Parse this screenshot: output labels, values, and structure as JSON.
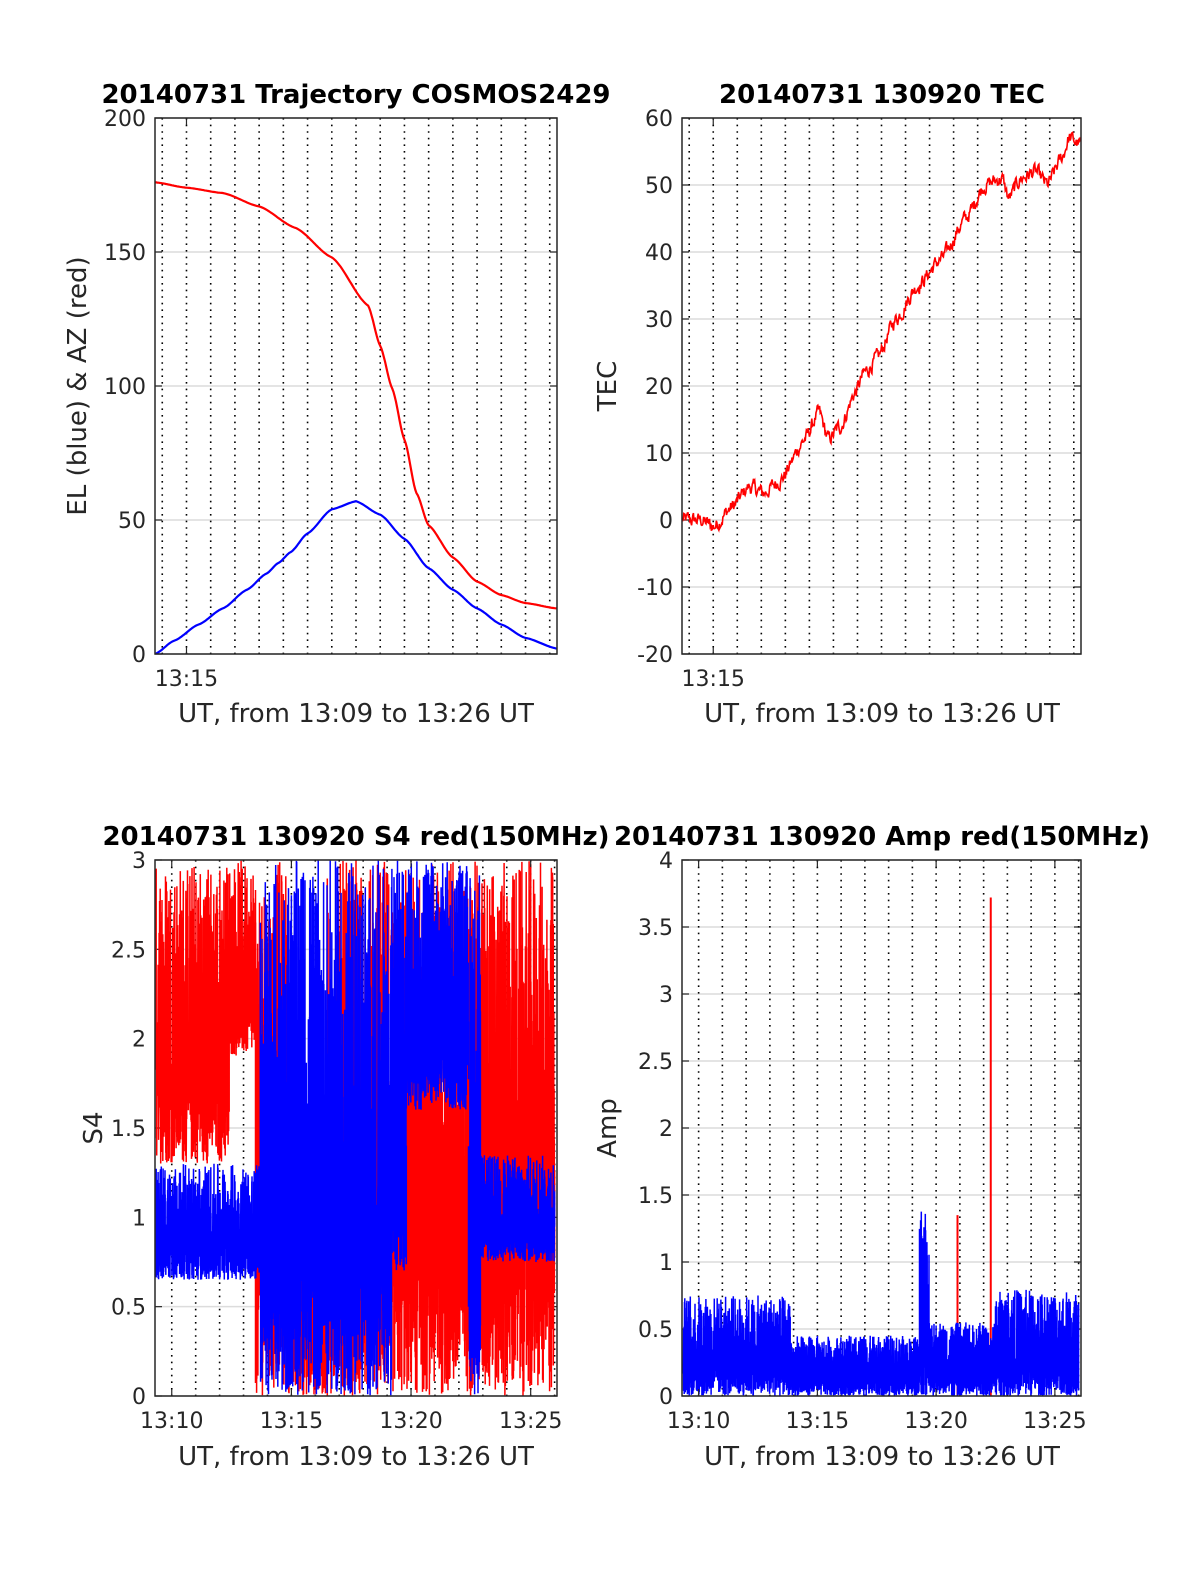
{
  "chart_data": [
    {
      "type": "line",
      "title": "20140731 Trajectory COSMOS2429",
      "xlabel": "UT, from 13:09 to 13:26 UT",
      "ylabel": "EL (blue) & AZ (red)",
      "xlim": [
        13.7,
        30.3
      ],
      "ylim": [
        0,
        200
      ],
      "xticks": [
        {
          "v": 15,
          "label": "13:15"
        }
      ],
      "yticks": [
        0,
        50,
        100,
        150,
        200
      ],
      "grid": true,
      "grid_minutes": [
        14,
        15,
        16,
        17,
        18,
        19,
        20,
        21,
        22,
        23,
        24,
        25,
        26,
        27,
        28,
        29,
        30
      ],
      "series": [
        {
          "color": "#0000ff",
          "kind": "smooth",
          "x": [
            13.7,
            14.5,
            15.5,
            16.5,
            17.5,
            18.3,
            18.8,
            19.3,
            20.0,
            21.0,
            22.0,
            23.0,
            24.0,
            25.0,
            26.0,
            27.0,
            28.0,
            29.0,
            30.3
          ],
          "y": [
            0,
            5,
            11,
            17,
            24,
            30,
            34,
            38,
            45,
            54,
            57,
            52,
            43,
            32,
            24,
            17,
            11,
            6,
            2
          ]
        },
        {
          "color": "#ff0000",
          "kind": "smooth",
          "x": [
            13.7,
            15.0,
            16.5,
            18.0,
            19.5,
            21.0,
            22.5,
            23.0,
            23.5,
            24.0,
            24.5,
            25.0,
            26.0,
            27.0,
            28.0,
            29.0,
            30.3
          ],
          "y": [
            176,
            174,
            172,
            167,
            159,
            148,
            130,
            115,
            99,
            80,
            60,
            48,
            36,
            27,
            22,
            19,
            17
          ]
        }
      ]
    },
    {
      "type": "line",
      "title": "20140731 130920 TEC",
      "xlabel": "UT, from 13:09 to 13:26 UT",
      "ylabel": "TEC",
      "xlim": [
        13.7,
        30.3
      ],
      "ylim": [
        -20,
        60
      ],
      "xticks": [
        {
          "v": 15,
          "label": "13:15"
        }
      ],
      "yticks": [
        -20,
        -10,
        0,
        10,
        20,
        30,
        40,
        50,
        60
      ],
      "grid": true,
      "grid_minutes": [
        14,
        15,
        16,
        17,
        18,
        19,
        20,
        21,
        22,
        23,
        24,
        25,
        26,
        27,
        28,
        29,
        30
      ],
      "series": [
        {
          "color": "#ff0000",
          "kind": "noisy",
          "noise": 0.9,
          "step": 0.05,
          "x": [
            13.7,
            14.5,
            15.0,
            15.8,
            16.5,
            17.1,
            17.8,
            18.8,
            19.4,
            19.8,
            20.3,
            20.9,
            21.3,
            21.8,
            22.6,
            23.5,
            24.5,
            25.5,
            26.3,
            27.0,
            27.3,
            27.8,
            28.4,
            28.9,
            29.5,
            29.8,
            30.3
          ],
          "y": [
            0,
            0,
            -1,
            2,
            5,
            4,
            6,
            12,
            16,
            12,
            14,
            19,
            22,
            24,
            30,
            35,
            39,
            45,
            50,
            51,
            48,
            51,
            52,
            50,
            54,
            57,
            56
          ]
        }
      ]
    },
    {
      "type": "line",
      "title": "20140731 130920 S4 red(150MHz)",
      "xlabel": "UT, from 13:09 to 13:26 UT",
      "ylabel": "S4",
      "xlim": [
        9.3,
        26.1
      ],
      "ylim": [
        0,
        3
      ],
      "xticks": [
        {
          "v": 10,
          "label": "13:10"
        },
        {
          "v": 15,
          "label": "13:15"
        },
        {
          "v": 20,
          "label": "13:20"
        },
        {
          "v": 25,
          "label": "13:25"
        }
      ],
      "yticks": [
        0,
        0.5,
        1,
        1.5,
        2,
        2.5,
        3
      ],
      "grid": true,
      "grid_minutes": [
        10,
        11,
        12,
        13,
        14,
        15,
        16,
        17,
        18,
        19,
        20,
        21,
        22,
        23,
        24,
        25,
        26
      ],
      "series": [
        {
          "color": "#ff0000",
          "kind": "bands",
          "segments": [
            {
              "from": 9.35,
              "to": 12.4,
              "lo": 1.3,
              "hi": 3.0
            },
            {
              "from": 12.4,
              "to": 13.5,
              "lo": 1.9,
              "hi": 3.0
            },
            {
              "from": 13.5,
              "to": 14.8,
              "lo": 0.0,
              "hi": 3.0
            },
            {
              "from": 14.8,
              "to": 16.5,
              "lo": 0.0,
              "hi": 1.5
            },
            {
              "from": 16.5,
              "to": 19.8,
              "lo": 0.0,
              "hi": 3.0
            },
            {
              "from": 19.8,
              "to": 26.0,
              "lo": 0.0,
              "hi": 3.0
            }
          ]
        },
        {
          "color": "#0000ff",
          "kind": "bands",
          "segments": [
            {
              "from": 9.35,
              "to": 13.7,
              "lo": 0.65,
              "hi": 1.3
            },
            {
              "from": 13.7,
              "to": 16.8,
              "lo": 0.0,
              "hi": 3.0
            },
            {
              "from": 16.8,
              "to": 19.2,
              "lo": 0.0,
              "hi": 3.0
            },
            {
              "from": 19.2,
              "to": 19.8,
              "lo": 0.7,
              "hi": 3.0
            },
            {
              "from": 19.8,
              "to": 22.4,
              "lo": 1.6,
              "hi": 3.0
            },
            {
              "from": 22.4,
              "to": 22.9,
              "lo": 0.0,
              "hi": 3.0
            },
            {
              "from": 22.9,
              "to": 26.0,
              "lo": 0.75,
              "hi": 1.35
            }
          ]
        }
      ]
    },
    {
      "type": "line",
      "title": "20140731 130920 Amp red(150MHz)",
      "xlabel": "UT, from 13:09 to 13:26 UT",
      "ylabel": "Amp",
      "xlim": [
        9.3,
        26.1
      ],
      "ylim": [
        0,
        4
      ],
      "xticks": [
        {
          "v": 10,
          "label": "13:10"
        },
        {
          "v": 15,
          "label": "13:15"
        },
        {
          "v": 20,
          "label": "13:20"
        },
        {
          "v": 25,
          "label": "13:25"
        }
      ],
      "yticks": [
        0,
        0.5,
        1,
        1.5,
        2,
        2.5,
        3,
        3.5,
        4
      ],
      "grid": true,
      "grid_minutes": [
        10,
        11,
        12,
        13,
        14,
        15,
        16,
        17,
        18,
        19,
        20,
        21,
        22,
        23,
        24,
        25,
        26
      ],
      "series": [
        {
          "color": "#ff0000",
          "kind": "spikes",
          "spikes": [
            {
              "x": 20.9,
              "y": 1.35
            },
            {
              "x": 22.3,
              "y": 3.72
            }
          ]
        },
        {
          "color": "#0000ff",
          "kind": "bands",
          "segments": [
            {
              "from": 9.35,
              "to": 13.9,
              "lo": 0.0,
              "hi": 0.75
            },
            {
              "from": 13.9,
              "to": 19.3,
              "lo": 0.0,
              "hi": 0.45
            },
            {
              "from": 19.3,
              "to": 19.7,
              "lo": 0.0,
              "hi": 1.5
            },
            {
              "from": 19.7,
              "to": 22.5,
              "lo": 0.0,
              "hi": 0.55
            },
            {
              "from": 22.5,
              "to": 26.0,
              "lo": 0.0,
              "hi": 0.8
            }
          ]
        }
      ]
    }
  ]
}
